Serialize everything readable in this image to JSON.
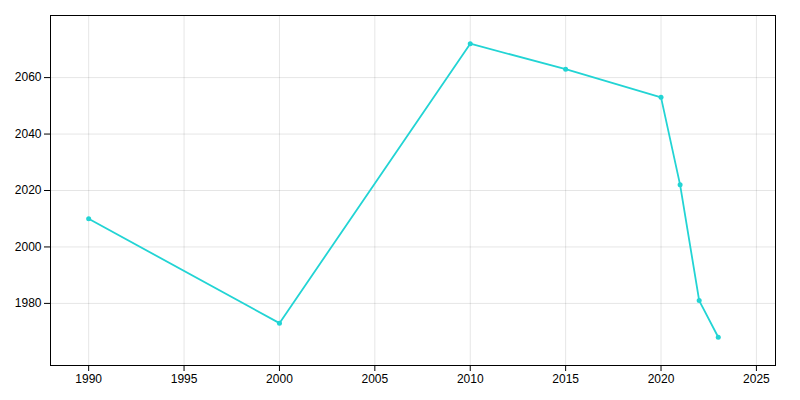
{
  "chart_data": {
    "type": "line",
    "x": [
      1990,
      2000,
      2010,
      2015,
      2020,
      2021,
      2022,
      2023
    ],
    "values": [
      2010,
      1973,
      2072,
      2063,
      2053,
      2022,
      1981,
      1968
    ],
    "color": "#22d4d4",
    "marker": "o",
    "xlim": [
      1988,
      2026
    ],
    "ylim": [
      1958,
      2082
    ],
    "xticks": [
      1990,
      1995,
      2000,
      2005,
      2010,
      2015,
      2020,
      2025
    ],
    "yticks": [
      1980,
      2000,
      2020,
      2040,
      2060
    ],
    "grid": true
  }
}
